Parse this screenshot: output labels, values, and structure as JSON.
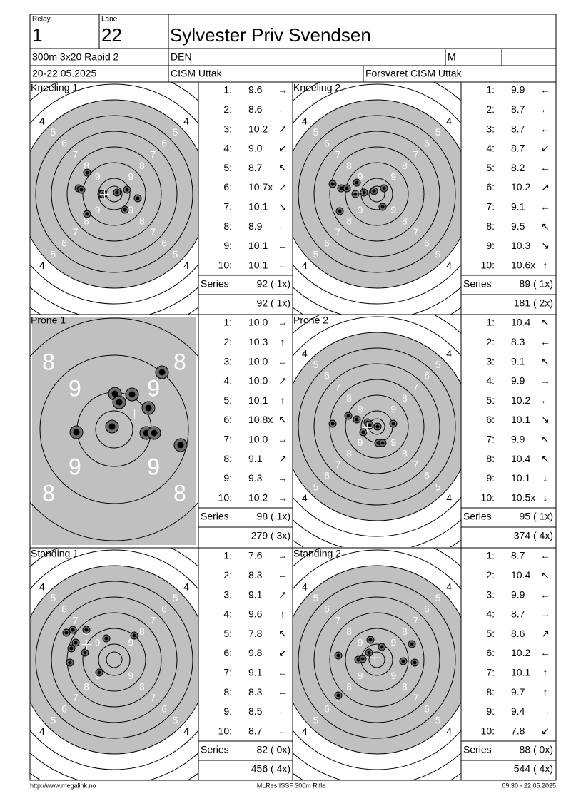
{
  "header": {
    "relay_label": "Relay",
    "relay": "1",
    "lane_label": "Lane",
    "lane": "22",
    "name": "Sylvester Priv Svendsen",
    "event": "300m 3x20 Rapid 2",
    "nation": "DEN",
    "gender": "M",
    "date": "20-22.05.2025",
    "club": "CISM Uttak",
    "team": "Forsvaret CISM Uttak"
  },
  "shot_labels": [
    "1:",
    "2:",
    "3:",
    "4:",
    "5:",
    "6:",
    "7:",
    "8:",
    "9:",
    "10:"
  ],
  "series_label": "Series",
  "panels": [
    {
      "title": "Kneeling 1",
      "ring_labels": [
        4,
        5,
        6,
        7,
        8,
        9
      ],
      "zoom": false,
      "scores": [
        "9.6",
        "8.6",
        "10.2",
        "9.0",
        "8.7",
        "10.7x",
        "10.1",
        "8.9",
        "10.1",
        "10.1"
      ],
      "directions": [
        "→",
        "←",
        "↗",
        "↙",
        "↖",
        "↗",
        "↘",
        "←",
        "←",
        "←"
      ],
      "series": "92 ( 1x)",
      "total": "92 ( 1x)"
    },
    {
      "title": "Kneeling 2",
      "ring_labels": [
        4,
        5,
        6,
        7,
        8,
        9
      ],
      "zoom": false,
      "scores": [
        "9.9",
        "8.7",
        "8.7",
        "8.7",
        "8.2",
        "10.2",
        "9.1",
        "9.5",
        "10.3",
        "10.6x"
      ],
      "directions": [
        "←",
        "←",
        "←",
        "↙",
        "←",
        "↗",
        "←",
        "↖",
        "↘",
        "↑"
      ],
      "series": "89 ( 1x)",
      "total": "181 ( 2x)"
    },
    {
      "title": "Prone 1",
      "ring_labels": [
        8,
        9
      ],
      "zoom": true,
      "scores": [
        "10.0",
        "10.3",
        "10.0",
        "10.0",
        "10.1",
        "10.8x",
        "10.0",
        "9.1",
        "9.3",
        "10.2"
      ],
      "directions": [
        "→",
        "↑",
        "←",
        "↗",
        "↑",
        "↖",
        "→",
        "↗",
        "→",
        "→"
      ],
      "series": "98 ( 1x)",
      "total": "279 ( 3x)"
    },
    {
      "title": "Prone 2",
      "ring_labels": [
        4,
        5,
        6,
        7,
        8,
        9
      ],
      "zoom": false,
      "scores": [
        "10.4",
        "8.3",
        "9.1",
        "9.9",
        "10.2",
        "10.1",
        "9.9",
        "10.4",
        "10.1",
        "10.5x"
      ],
      "directions": [
        "↖",
        "←",
        "↖",
        "→",
        "←",
        "↘",
        "↖",
        "↖",
        "↓",
        "↓"
      ],
      "series": "95 ( 1x)",
      "total": "374 ( 4x)"
    },
    {
      "title": "Standing 1",
      "ring_labels": [
        4,
        5,
        6,
        7,
        8,
        9
      ],
      "zoom": false,
      "scores": [
        "7.6",
        "8.3",
        "9.1",
        "9.6",
        "7.8",
        "9.8",
        "9.1",
        "8.3",
        "8.5",
        "8.7"
      ],
      "directions": [
        "→",
        "←",
        "↗",
        "↑",
        "↖",
        "↙",
        "←",
        "←",
        "←",
        "←"
      ],
      "series": "82 ( 0x)",
      "total": "456 ( 4x)"
    },
    {
      "title": "Standing 2",
      "ring_labels": [
        4,
        5,
        6,
        7,
        8,
        9
      ],
      "zoom": false,
      "scores": [
        "8.7",
        "10.4",
        "9.9",
        "8.7",
        "8.6",
        "10.2",
        "10.1",
        "9.7",
        "9.4",
        "7.8"
      ],
      "directions": [
        "←",
        "↖",
        "←",
        "→",
        "↗",
        "←",
        "↑",
        "↑",
        "→",
        "↙"
      ],
      "series": "88 ( 0x)",
      "total": "544 ( 4x)"
    }
  ],
  "footer": {
    "left": "http://www.megalink.no",
    "center": "MLRes ISSF 300m Rifle",
    "right": "09:30 - 22.05.2025"
  }
}
